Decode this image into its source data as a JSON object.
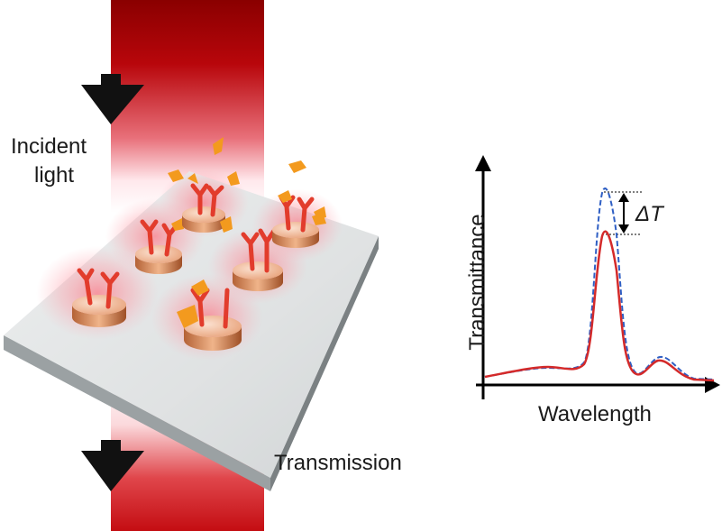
{
  "labels": {
    "incident_line1": "Incident",
    "incident_line2": "light",
    "transmission": "Transmission",
    "delta_t": "ΔT"
  },
  "chart_data": {
    "type": "line",
    "xlabel": "Wavelength",
    "ylabel": "Transmittance",
    "annotations": [
      "ΔT"
    ],
    "series": [
      {
        "style": "solid",
        "color": "#d42a2a"
      },
      {
        "style": "dashed",
        "color": "#2f5fc4"
      }
    ]
  },
  "colors": {
    "beam": "#c40d12",
    "beam_dark": "#8a0000",
    "substrate_top": "#c9cdcf",
    "substrate_side": "#8e9496",
    "disk": "#e8a27a",
    "antibody": "#e23c2c",
    "analyte": "#f39a1e",
    "solid_curve": "#d42a2a",
    "dashed_curve": "#2f5fc4",
    "arrow": "#111111"
  }
}
